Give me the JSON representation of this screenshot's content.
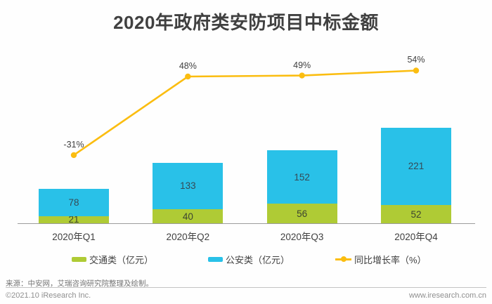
{
  "title": "2020年政府类安防项目中标金额",
  "chart_data": {
    "type": "bar",
    "subtype": "stacked-bars-with-line-overlay",
    "title": "2020年政府类安防项目中标金额",
    "categories": [
      "2020年Q1",
      "2020年Q2",
      "2020年Q3",
      "2020年Q4"
    ],
    "series": [
      {
        "name": "交通类（亿元）",
        "type": "bar",
        "stack": true,
        "color": "#AFCB35",
        "values": [
          21,
          40,
          56,
          52
        ]
      },
      {
        "name": "公安类（亿元）",
        "type": "bar",
        "stack": true,
        "color": "#29C1E8",
        "values": [
          78,
          133,
          152,
          221
        ]
      },
      {
        "name": "同比增长率（%）",
        "type": "line",
        "color": "#FBBD10",
        "values": [
          -31,
          48,
          49,
          54
        ],
        "point_labels": [
          "-31%",
          "48%",
          "49%",
          "54%"
        ]
      }
    ],
    "stack_totals": [
      99,
      173,
      208,
      273
    ],
    "value_labels_shown": true,
    "gridlines": false,
    "y_axis_shown": false,
    "legend_position": "bottom"
  },
  "legend": {
    "items": [
      {
        "label": "交通类（亿元）",
        "marker": "green-swatch"
      },
      {
        "label": "公安类（亿元）",
        "marker": "blue-swatch"
      },
      {
        "label": "同比增长率（%）",
        "marker": "yellow-line-dot"
      }
    ]
  },
  "footer": {
    "source": "来源：中安网，艾瑞咨询研究院整理及绘制。",
    "copyright": "©2021.10 iResearch Inc.",
    "website": "www.iresearch.com.cn"
  },
  "colors": {
    "traffic_green": "#AFCB35",
    "security_blue": "#29C1E8",
    "growth_yellow": "#FBBD10",
    "text_dark": "#404040",
    "axis_gray": "#9B9B9B"
  }
}
